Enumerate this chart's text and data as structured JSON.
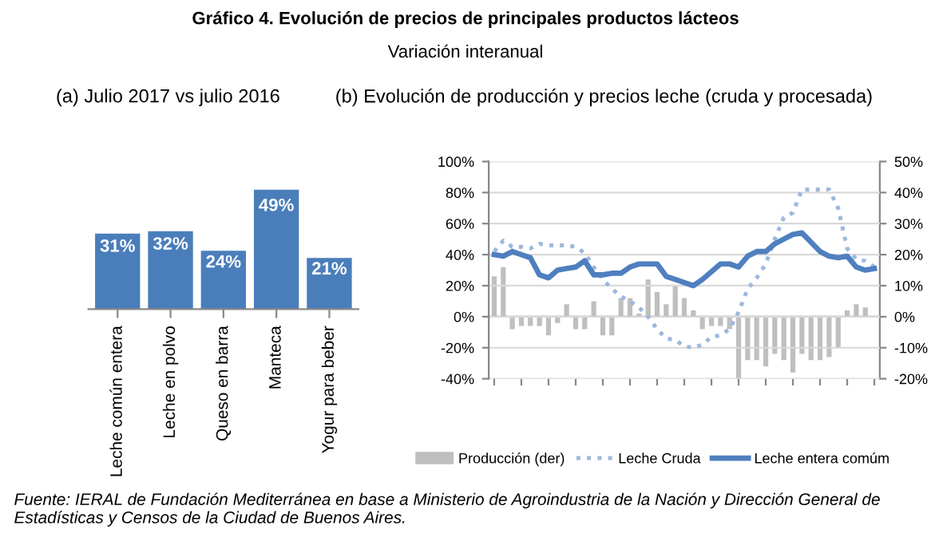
{
  "chart_data": [
    {
      "type": "bar",
      "title": "(a) Julio 2017 vs julio 2016",
      "categories": [
        "Leche común entera",
        "Leche en polvo",
        "Queso en barra",
        "Manteca",
        "Yogur para beber"
      ],
      "values": [
        31,
        32,
        24,
        49,
        21
      ],
      "value_labels": [
        "31%",
        "32%",
        "24%",
        "49%",
        "21%"
      ],
      "color": "#4a7ebb",
      "tick_labels": "x",
      "grid": false,
      "annotations": [
        "Gráfico 4. Evolución de precios de principales productos lácteos",
        "Variación interanual",
        "Fuente: IERAL de Fundación Mediterránea en base a Ministerio de Agroindustria de la Nación y Dirección General de Estadísticas y Censos de la Ciudad de Buenos Aires."
      ]
    },
    {
      "type": "line",
      "title": "(b) Evolución de producción y precios leche (cruda y procesada)",
      "categories": [
        null,
        null,
        null,
        null,
        null,
        null,
        null,
        null,
        null,
        null,
        null,
        null,
        null,
        null,
        null,
        null,
        null,
        null,
        null,
        null,
        null,
        null,
        null,
        null,
        null,
        null,
        null,
        null,
        null,
        null,
        null,
        null,
        null,
        null,
        null,
        null,
        null,
        null,
        null,
        null,
        null,
        null,
        null
      ],
      "series": [
        {
          "name": "Producción (der)",
          "type": "bar",
          "axis": "y2",
          "color": "#bfbfbf",
          "values": [
            13,
            16,
            -4,
            -3,
            -3,
            -3,
            -6,
            -2,
            4,
            -4,
            -4,
            5,
            -6,
            -6,
            6,
            6,
            1,
            12,
            8,
            4,
            10,
            6,
            2,
            -4,
            -3,
            -3,
            -4,
            -20,
            -14,
            -14,
            -16,
            -12,
            -14,
            -18,
            -12,
            -14,
            -14,
            -13,
            -10,
            2,
            4,
            3,
            0
          ]
        },
        {
          "name": "Leche Cruda",
          "type": "line",
          "line_style": "dotted",
          "color": "#9db8dc",
          "values": [
            42,
            49,
            45,
            45,
            44,
            47,
            46,
            46,
            46,
            45,
            41,
            32,
            24,
            18,
            13,
            10,
            6,
            0,
            -8,
            -14,
            -15,
            -19,
            -20,
            -18,
            -13,
            -12,
            -8,
            3,
            18,
            25,
            34,
            50,
            64,
            67,
            82,
            82,
            82,
            82,
            70,
            44,
            37,
            36,
            32
          ]
        },
        {
          "name": "Leche entera comúm",
          "type": "line",
          "line_style": "solid",
          "color": "#4f7fbf",
          "values": [
            40,
            39,
            42,
            40,
            38,
            27,
            25,
            30,
            31,
            32,
            36,
            27,
            27,
            28,
            28,
            32,
            34,
            34,
            34,
            26,
            24,
            22,
            20,
            24,
            29,
            34,
            34,
            32,
            39,
            42,
            42,
            47,
            50,
            53,
            54,
            48,
            42,
            39,
            38,
            39,
            32,
            30,
            31
          ]
        }
      ],
      "ylim": [
        -40,
        100
      ],
      "yticks": [
        {
          "value": -40,
          "label": "-40%"
        },
        {
          "value": -20,
          "label": "-20%"
        },
        {
          "value": 0,
          "label": "0%"
        },
        {
          "value": 20,
          "label": "20%"
        },
        {
          "value": 40,
          "label": "40%"
        },
        {
          "value": 60,
          "label": "60%"
        },
        {
          "value": 80,
          "label": "80%"
        },
        {
          "value": 100,
          "label": "100%"
        }
      ],
      "y2lim": [
        -20,
        50
      ],
      "y2ticks": [
        {
          "value": -20,
          "label": "-20%"
        },
        {
          "value": -10,
          "label": "-10%"
        },
        {
          "value": 0,
          "label": "0%"
        },
        {
          "value": 10,
          "label": "10%"
        },
        {
          "value": 20,
          "label": "20%"
        },
        {
          "value": 30,
          "label": "30%"
        },
        {
          "value": 40,
          "label": "40%"
        },
        {
          "value": 50,
          "label": "50%"
        }
      ],
      "grid": "y",
      "legend": "bottom"
    }
  ]
}
